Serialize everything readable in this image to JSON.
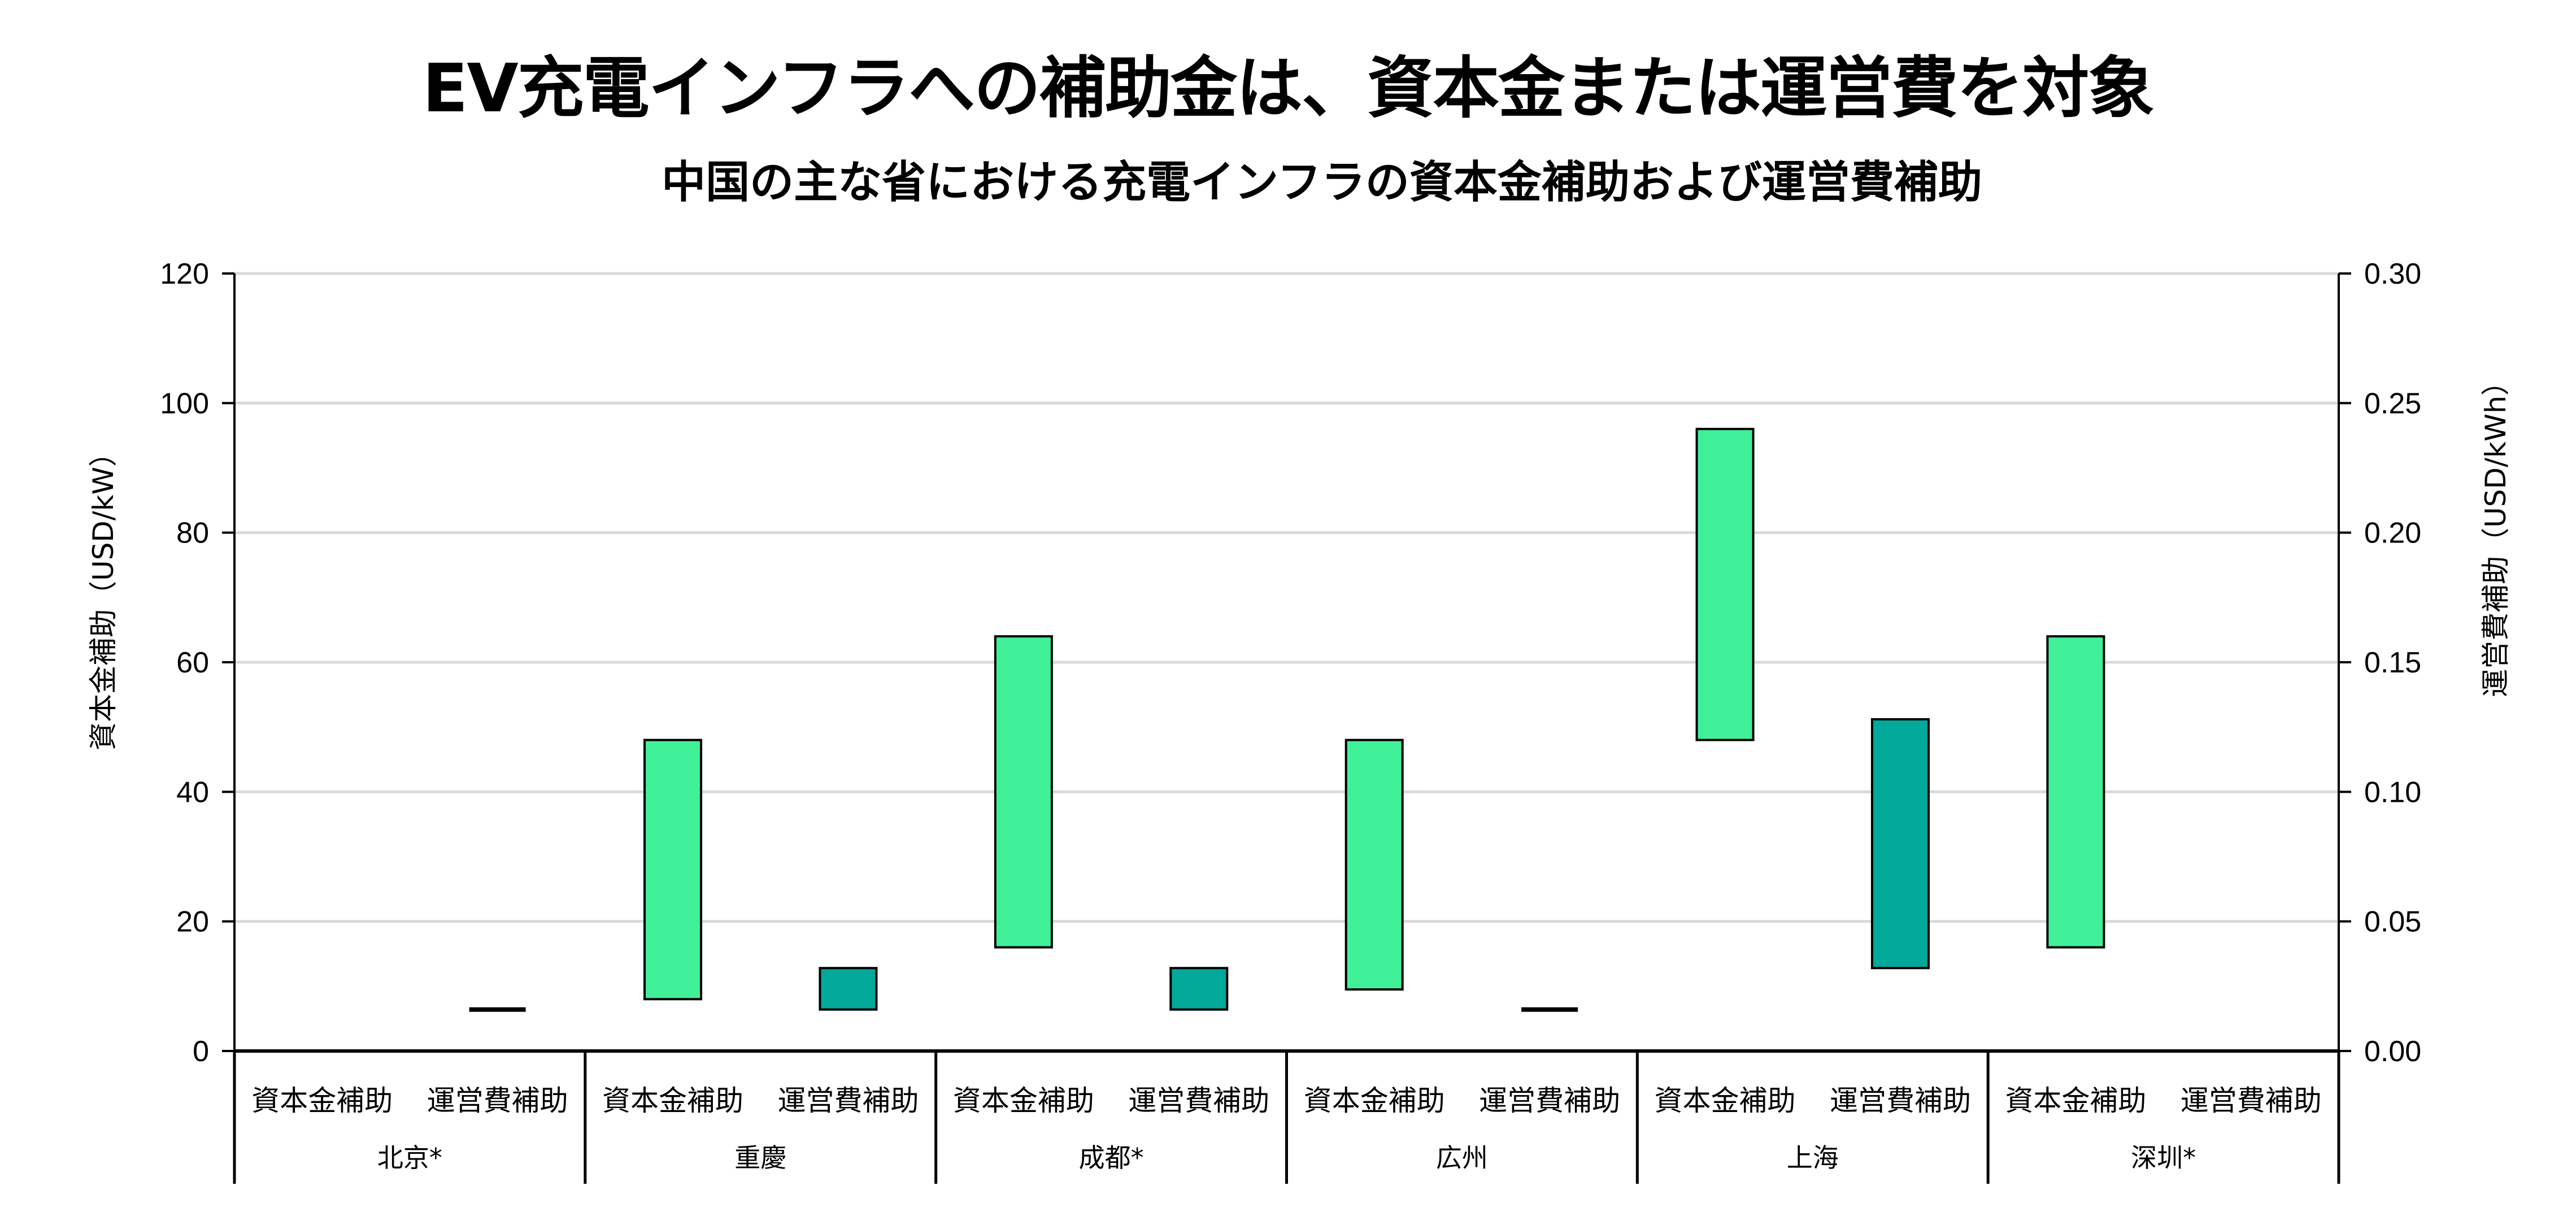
{
  "chart_data": {
    "type": "bar",
    "subtype": "floating-range",
    "title": "EV充電インフラへの補助金は、資本金または運営費を対象",
    "subtitle": "中国の主な省における充電インフラの資本金補助および運営費補助",
    "ylabel_left": "資本金補助（USD/kW）",
    "ylabel_right": "運営費補助（USD/kWh）",
    "ylim_left": [
      0,
      120
    ],
    "ylim_right": [
      0,
      0.3
    ],
    "yticks_left": [
      "0",
      "20",
      "40",
      "60",
      "80",
      "100",
      "120"
    ],
    "yticks_right": [
      "0.00",
      "0.05",
      "0.10",
      "0.15",
      "0.20",
      "0.25",
      "0.30"
    ],
    "grid": true,
    "legend": "none",
    "subcategories": [
      "資本金補助",
      "運営費補助"
    ],
    "groups": [
      {
        "name": "北京*",
        "capital": null,
        "operating": [
          0.016,
          0.016
        ]
      },
      {
        "name": "重慶",
        "capital": [
          8,
          48
        ],
        "operating": [
          0.016,
          0.032
        ]
      },
      {
        "name": "成都*",
        "capital": [
          16,
          64
        ],
        "operating": [
          0.016,
          0.032
        ]
      },
      {
        "name": "広州",
        "capital": [
          9.5,
          48
        ],
        "operating": [
          0.016,
          0.016
        ]
      },
      {
        "name": "上海",
        "capital": [
          48,
          96
        ],
        "operating": [
          0.032,
          0.128
        ]
      },
      {
        "name": "深圳*",
        "capital": [
          16,
          64
        ],
        "operating": null
      }
    ],
    "colors": {
      "capital": "#3ff098",
      "operating": "#02a89a",
      "grid": "#d9d9d9",
      "axis": "#000000"
    }
  }
}
